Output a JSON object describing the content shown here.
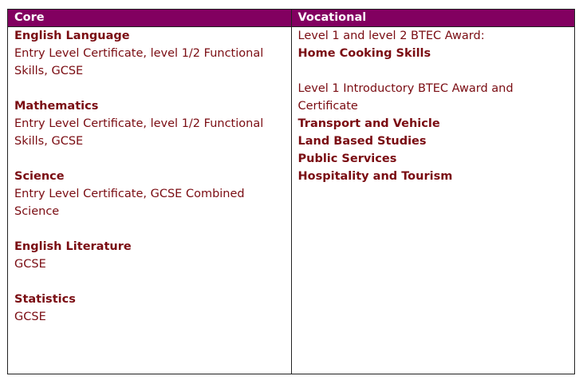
{
  "headers": {
    "core": "Core",
    "vocational": "Vocational"
  },
  "core": [
    {
      "title": "English Language",
      "lines": [
        "Entry Level Certificate, level 1/2 Functional",
        "Skills, GCSE"
      ]
    },
    {
      "title": "Mathematics",
      "lines": [
        "Entry Level Certificate, level 1/2 Functional",
        "Skills, GCSE"
      ]
    },
    {
      "title": "Science",
      "lines": [
        "Entry Level Certificate, GCSE Combined",
        "Science"
      ]
    },
    {
      "title": "English Literature",
      "lines": [
        "GCSE"
      ]
    },
    {
      "title": "Statistics",
      "lines": [
        "GCSE"
      ]
    }
  ],
  "vocational": {
    "group1_intro": "Level 1 and level 2 BTEC Award:",
    "group1_items": [
      "Home Cooking Skills"
    ],
    "group2_intro_lines": [
      "Level 1 Introductory BTEC Award and",
      "Certificate"
    ],
    "group2_items": [
      "Transport and Vehicle",
      "Land Based Studies",
      "Public Services",
      "Hospitality and Tourism"
    ]
  }
}
